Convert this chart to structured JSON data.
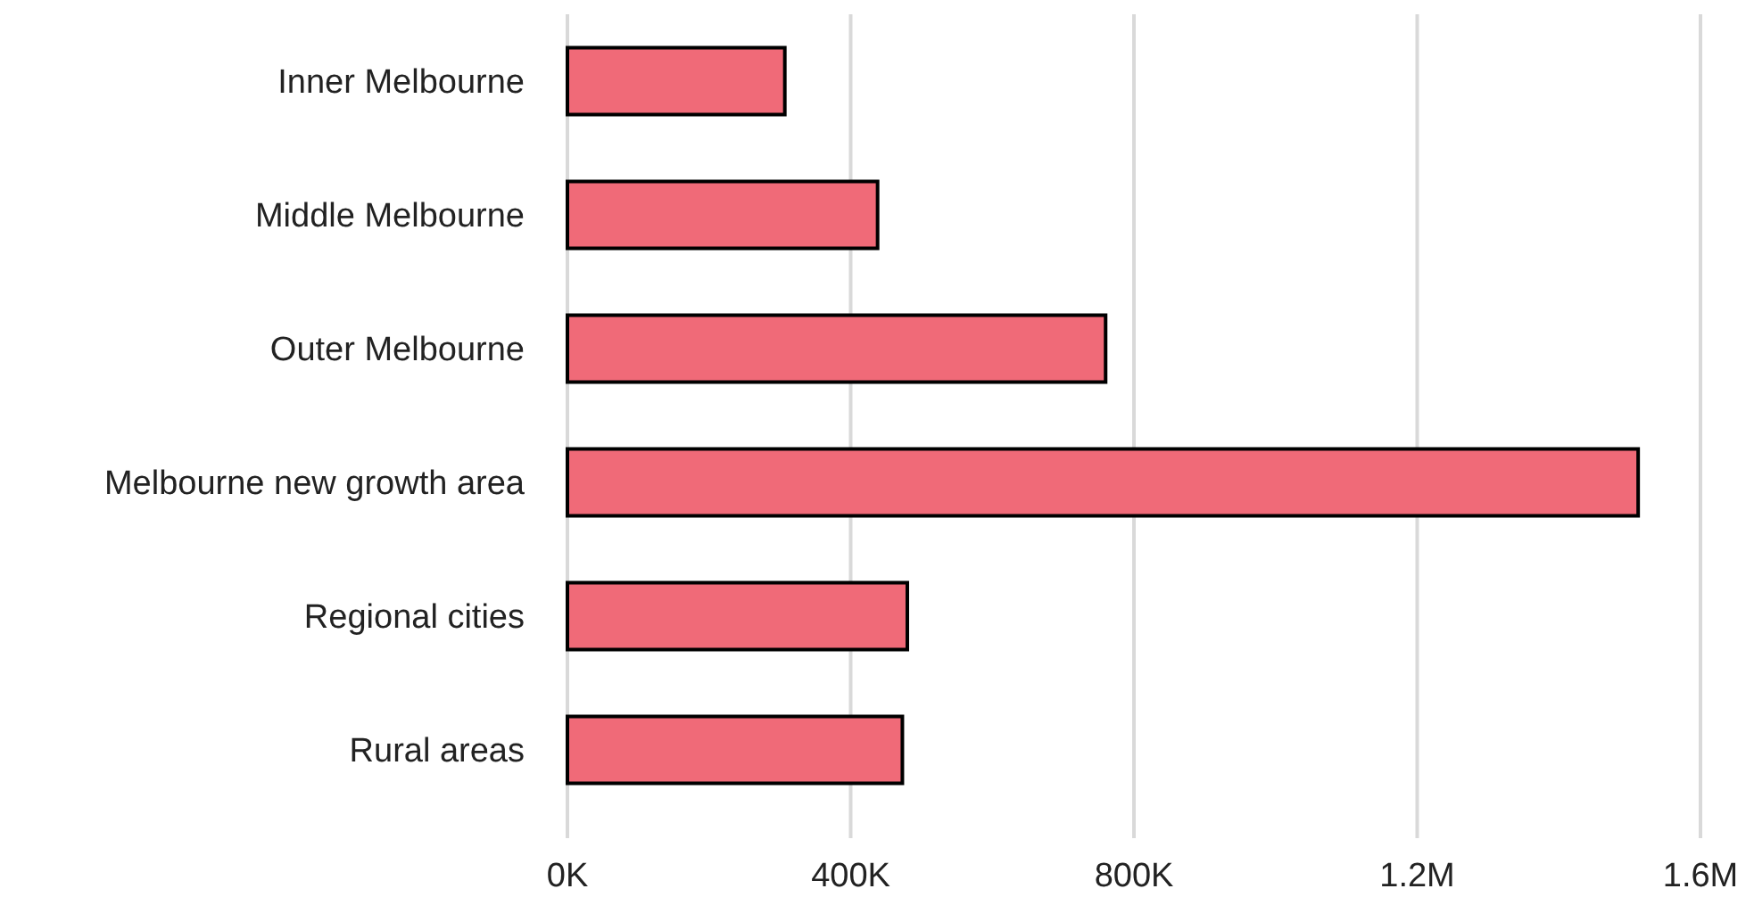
{
  "chart_data": {
    "type": "bar",
    "orientation": "horizontal",
    "categories": [
      "Inner Melbourne",
      "Middle Melbourne",
      "Outer Melbourne",
      "Melbourne new growth area",
      "Regional cities",
      "Rural areas"
    ],
    "values": [
      307000,
      438000,
      760000,
      1512000,
      480000,
      473000
    ],
    "color": "#f06a78",
    "xlim": [
      0,
      1600000
    ],
    "xticks": [
      {
        "value": 0,
        "label": "0K"
      },
      {
        "value": 400000,
        "label": "400K"
      },
      {
        "value": 800000,
        "label": "800K"
      },
      {
        "value": 1200000,
        "label": "1.2M"
      },
      {
        "value": 1600000,
        "label": "1.6M"
      }
    ],
    "grid": "x"
  }
}
